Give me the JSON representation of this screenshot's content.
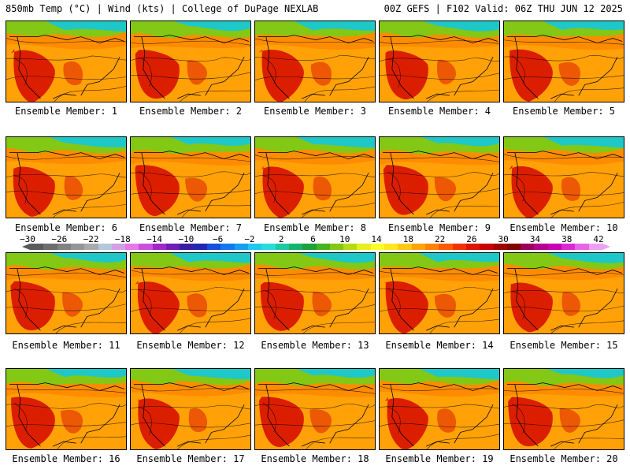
{
  "header": {
    "left": "850mb Temp (°C) | Wind (kts) | College of DuPage NEXLAB",
    "right": "00Z GEFS | F102 Valid: 06Z THU JUN 12 2025"
  },
  "panels": [
    {
      "label": "Ensemble Member: 1"
    },
    {
      "label": "Ensemble Member: 2"
    },
    {
      "label": "Ensemble Member: 3"
    },
    {
      "label": "Ensemble Member: 4"
    },
    {
      "label": "Ensemble Member: 5"
    },
    {
      "label": "Ensemble Member: 6"
    },
    {
      "label": "Ensemble Member: 7"
    },
    {
      "label": "Ensemble Member: 8"
    },
    {
      "label": "Ensemble Member: 9"
    },
    {
      "label": "Ensemble Member: 10"
    },
    {
      "label": "Ensemble Member: 11"
    },
    {
      "label": "Ensemble Member: 12"
    },
    {
      "label": "Ensemble Member: 13"
    },
    {
      "label": "Ensemble Member: 14"
    },
    {
      "label": "Ensemble Member: 15"
    },
    {
      "label": "Ensemble Member: 16"
    },
    {
      "label": "Ensemble Member: 17"
    },
    {
      "label": "Ensemble Member: 18"
    },
    {
      "label": "Ensemble Member: 19"
    },
    {
      "label": "Ensemble Member: 20"
    }
  ],
  "colorbar": {
    "labels": [
      "−30",
      "−26",
      "−22",
      "−18",
      "−14",
      "−10",
      "−6",
      "−2",
      "2",
      "6",
      "10",
      "14",
      "18",
      "22",
      "26",
      "30",
      "34",
      "38",
      "42"
    ],
    "colors": [
      "#5a5a5a",
      "#6e6e6e",
      "#828282",
      "#969696",
      "#aaaaaa",
      "#b4c8dc",
      "#d2a0e6",
      "#e678e6",
      "#c850dc",
      "#a028c8",
      "#6e1eb4",
      "#3c1ea0",
      "#1e28b4",
      "#1450dc",
      "#1478f0",
      "#14a0f0",
      "#1ec8f0",
      "#28dcdc",
      "#1ec8a0",
      "#14b46e",
      "#1ea03c",
      "#46b41e",
      "#82c814",
      "#b4dc14",
      "#e6f01e",
      "#ffff28",
      "#ffe61e",
      "#ffc814",
      "#ffa50a",
      "#ff8200",
      "#ff5a00",
      "#f03200",
      "#dc1400",
      "#c80000",
      "#a00000",
      "#820000",
      "#9b005a",
      "#b4008c",
      "#c800b4",
      "#dc28d2",
      "#e664e6",
      "#f0a0f0"
    ]
  },
  "colors": {
    "hot": "#dc1e00",
    "warm": "#ff8c00",
    "mild": "#ffc814",
    "cool": "#82c814",
    "cold": "#1ec8c8",
    "contour": "#000000"
  }
}
